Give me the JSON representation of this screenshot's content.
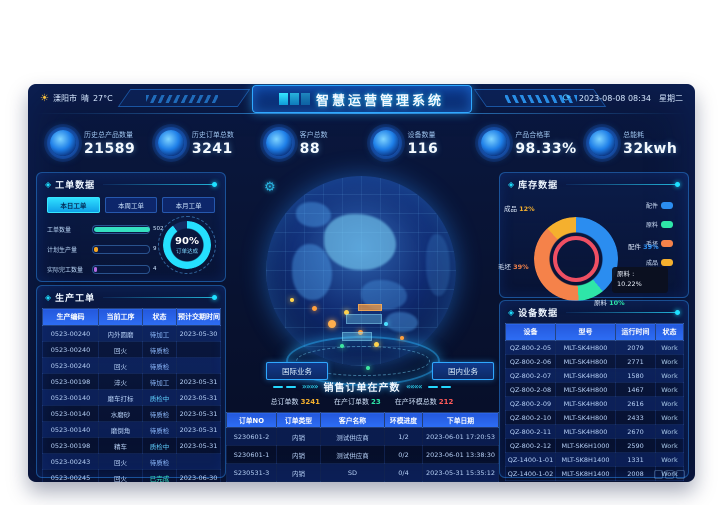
{
  "header": {
    "city": "溧阳市",
    "weather": "晴",
    "temp": "27°C",
    "title": "智慧运营管理系统",
    "date": "2023-08-08 08:34",
    "weekday": "星期二"
  },
  "icons": {
    "weather": "☀",
    "refresh": "⟳",
    "panel_key": "◈",
    "gear": "⚙",
    "chevrons": "»»»»"
  },
  "kpis": [
    {
      "label": "历史总产品数量",
      "value": "21589"
    },
    {
      "label": "历史订单总数",
      "value": "3241"
    },
    {
      "label": "客户总数",
      "value": "88"
    },
    {
      "label": "设备数量",
      "value": "116"
    },
    {
      "label": "产品合格率",
      "value": "98.33%"
    },
    {
      "label": "总能耗",
      "value": "32kwh"
    }
  ],
  "workorder_panel": {
    "title": "工单数据",
    "tabs": [
      {
        "label": "本日工单",
        "active": true
      },
      {
        "label": "本周工单",
        "active": false
      },
      {
        "label": "本月工单",
        "active": false
      }
    ],
    "bars": [
      {
        "label": "工单数量",
        "value": "502",
        "pct": 100,
        "color": "#35e0c0"
      },
      {
        "label": "计划生产量",
        "value": "9",
        "pct": 8,
        "color": "#f5a623"
      },
      {
        "label": "实际完工数量",
        "value": "4",
        "pct": 5,
        "color": "#b36ae2"
      }
    ],
    "gauge": {
      "value": "90%",
      "pct": 90,
      "label": "订单达成",
      "color": "#25e0ff"
    }
  },
  "production_panel": {
    "title": "生产工单",
    "headers": [
      "生产编码",
      "当前工序",
      "状态",
      "预计交期时间"
    ],
    "rows": [
      [
        "0523-00240",
        "内外圆磨",
        "待加工",
        "2023-05-30"
      ],
      [
        "0523-00240",
        "回火",
        "待质检",
        ""
      ],
      [
        "0523-00240",
        "回火",
        "待质检",
        ""
      ],
      [
        "0523-00198",
        "淬火",
        "待加工",
        "2023-05-31"
      ],
      [
        "0523-00140",
        "磨车打标",
        "质检中",
        "2023-05-31"
      ],
      [
        "0523-00140",
        "水磨砂",
        "待质检",
        "2023-05-31"
      ],
      [
        "0523-00140",
        "磨倒角",
        "待质检",
        "2023-05-31"
      ],
      [
        "0523-00198",
        "精车",
        "质检中",
        "2023-05-31"
      ],
      [
        "0523-00243",
        "回火",
        "待质检",
        ""
      ],
      [
        "0523-00245",
        "回火",
        "已完成",
        "2023-06-30"
      ]
    ]
  },
  "inventory_panel": {
    "title": "库存数据",
    "chart_data": {
      "type": "pie",
      "series": [
        {
          "name": "配件",
          "value": 39,
          "color": "#2b8df0"
        },
        {
          "name": "原料",
          "value": 10,
          "color": "#2ee6a8"
        },
        {
          "name": "毛坯",
          "value": 39,
          "color": "#f5824a"
        },
        {
          "name": "成品",
          "value": 12,
          "color": "#f5b02e"
        }
      ],
      "inner_ring_color": "#ef4f63",
      "legend_position": "right"
    },
    "tooltip": {
      "label": "原料 :",
      "value": "10.22%"
    }
  },
  "device_panel": {
    "title": "设备数据",
    "headers": [
      "设备",
      "型号",
      "运行时间",
      "状态"
    ],
    "rows": [
      [
        "QZ-800-2-05",
        "MLT-SK4H800",
        "2079",
        "Work"
      ],
      [
        "QZ-800-2-06",
        "MLT-SK4H800",
        "2771",
        "Work"
      ],
      [
        "QZ-800-2-07",
        "MLT-SK4H800",
        "1580",
        "Work"
      ],
      [
        "QZ-800-2-08",
        "MLT-SK4H800",
        "1467",
        "Work"
      ],
      [
        "QZ-800-2-09",
        "MLT-SK4H800",
        "2616",
        "Work"
      ],
      [
        "QZ-800-2-10",
        "MLT-SK4H800",
        "2433",
        "Work"
      ],
      [
        "QZ-800-2-11",
        "MLT-SK4H800",
        "2670",
        "Work"
      ],
      [
        "QZ-800-2-12",
        "MLT-SK6H1000",
        "2590",
        "Work"
      ],
      [
        "QZ-1400-1-01",
        "MLT-SK8H1400",
        "1331",
        "Work"
      ],
      [
        "QZ-1400-1-02",
        "MLT-SK8H1400",
        "2008",
        "Work"
      ]
    ]
  },
  "center": {
    "intl_button": "国际业务",
    "domestic_button": "国内业务",
    "orders_title": "销售订单在产数",
    "stats": [
      {
        "label": "总订单数",
        "value": "3241",
        "color": "#f5b02e"
      },
      {
        "label": "在产订单数",
        "value": "23",
        "color": "#2ee6a8"
      },
      {
        "label": "在产环模总数",
        "value": "212",
        "color": "#ff5a5a"
      }
    ],
    "headers": [
      "订单NO",
      "订单类型",
      "客户名称",
      "环模进度",
      "下单日期"
    ],
    "rows": [
      [
        "S230601-2",
        "内销",
        "测试供应商",
        "1/2",
        "2023-06-01 17:20:53"
      ],
      [
        "S230601-1",
        "内销",
        "测试供应商",
        "0/2",
        "2023-06-01 13:38:30"
      ],
      [
        "S230531-3",
        "内销",
        "SD",
        "0/4",
        "2023-05-31 15:35:12"
      ]
    ]
  },
  "status_colors": {
    "待加工": "#8fbcff",
    "待质检": "#8fbcff",
    "质检中": "#5fd0ff",
    "已完成": "#35e0c0",
    "Work": "#a9c9e8"
  }
}
